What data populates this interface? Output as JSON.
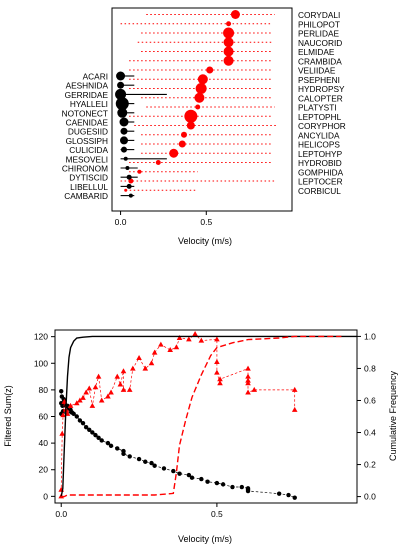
{
  "chart_data": [
    {
      "type": "scatter",
      "title": "",
      "xlabel": "Velocity (m/s)",
      "ylabel": "",
      "xlim": [
        -0.05,
        1.0
      ],
      "xticks": [
        0.0,
        0.5
      ],
      "xtick_labels": [
        "0.0",
        "0.5"
      ],
      "grid": false,
      "series": [
        {
          "name": "",
          "color": "#000000",
          "marker": "circle",
          "points": [
            {
              "label": "ACARI",
              "x": 0.0,
              "size": 4.5,
              "range": [
                0.0,
                0.08
              ]
            },
            {
              "label": "AESHNIDA",
              "x": 0.0,
              "size": 3.5,
              "range": [
                0.0,
                0.08
              ]
            },
            {
              "label": "GERRIDAE",
              "x": 0.0,
              "size": 5.5,
              "range": [
                0.0,
                0.27
              ]
            },
            {
              "label": "HYALLELI",
              "x": 0.01,
              "size": 6.5,
              "range": [
                0.0,
                0.08
              ]
            },
            {
              "label": "NOTONECT",
              "x": 0.01,
              "size": 5.0,
              "range": [
                0.0,
                0.08
              ]
            },
            {
              "label": "CAENIDAE",
              "x": 0.02,
              "size": 4.5,
              "range": [
                0.0,
                0.08
              ]
            },
            {
              "label": "DUGESIID",
              "x": 0.02,
              "size": 3.5,
              "range": [
                0.0,
                0.08
              ]
            },
            {
              "label": "GLOSSIPH",
              "x": 0.02,
              "size": 4.0,
              "range": [
                0.0,
                0.08
              ]
            },
            {
              "label": "CULICIDA",
              "x": 0.02,
              "size": 3.0,
              "range": [
                0.0,
                0.08
              ]
            },
            {
              "label": "MESOVELI",
              "x": 0.03,
              "size": 2.0,
              "range": [
                0.0,
                0.27
              ]
            },
            {
              "label": "CHIRONOM",
              "x": 0.04,
              "size": 2.0,
              "range": [
                0.0,
                0.1
              ]
            },
            {
              "label": "DYTISCID",
              "x": 0.05,
              "size": 2.5,
              "range": [
                0.0,
                0.1
              ]
            },
            {
              "label": "LIBELLUL",
              "x": 0.05,
              "size": 2.5,
              "range": [
                0.0,
                0.08
              ]
            },
            {
              "label": "CAMBARID",
              "x": 0.06,
              "size": 2.0,
              "range": [
                0.0,
                0.08
              ]
            }
          ]
        },
        {
          "name": "",
          "color": "#ff0000",
          "marker": "circle",
          "points": [
            {
              "label": "CORYDALI",
              "x": 0.67,
              "size": 4.5,
              "range": [
                0.15,
                0.9
              ]
            },
            {
              "label": "PHILOPOT",
              "x": 0.63,
              "size": 2.5,
              "range": [
                0.0,
                0.88
              ]
            },
            {
              "label": "PERLIDAE",
              "x": 0.63,
              "size": 5.5,
              "range": [
                0.12,
                0.88
              ]
            },
            {
              "label": "NAUCORID",
              "x": 0.63,
              "size": 5.0,
              "range": [
                0.1,
                0.88
              ]
            },
            {
              "label": "ELMIDAE",
              "x": 0.63,
              "size": 5.0,
              "range": [
                0.12,
                0.88
              ]
            },
            {
              "label": "CRAMBIDA",
              "x": 0.63,
              "size": 5.0,
              "range": [
                0.05,
                0.88
              ]
            },
            {
              "label": "VELIIDAE",
              "x": 0.52,
              "size": 3.5,
              "range": [
                0.05,
                0.88
              ]
            },
            {
              "label": "PSEPHENI",
              "x": 0.48,
              "size": 5.0,
              "range": [
                0.05,
                0.88
              ]
            },
            {
              "label": "HYDROPSY",
              "x": 0.47,
              "size": 5.5,
              "range": [
                0.05,
                0.88
              ]
            },
            {
              "label": "CALOPTER",
              "x": 0.46,
              "size": 5.0,
              "range": [
                0.12,
                0.88
              ]
            },
            {
              "label": "PLATYSTI",
              "x": 0.45,
              "size": 2.5,
              "range": [
                0.15,
                0.9
              ]
            },
            {
              "label": "LEPTOPHL",
              "x": 0.41,
              "size": 6.5,
              "range": [
                0.05,
                0.88
              ]
            },
            {
              "label": "CORYPHOR",
              "x": 0.41,
              "size": 4.0,
              "range": [
                0.08,
                0.92
              ]
            },
            {
              "label": "ANCYLIDA",
              "x": 0.37,
              "size": 3.0,
              "range": [
                0.12,
                0.88
              ]
            },
            {
              "label": "HELICOPS",
              "x": 0.36,
              "size": 3.5,
              "range": [
                0.12,
                0.88
              ]
            },
            {
              "label": "LEPTOHYP",
              "x": 0.31,
              "size": 4.5,
              "range": [
                0.12,
                0.88
              ]
            },
            {
              "label": "HYDROBID",
              "x": 0.22,
              "size": 2.5,
              "range": [
                0.05,
                0.88
              ]
            },
            {
              "label": "GOMPHIDA",
              "x": 0.11,
              "size": 2.0,
              "range": [
                0.05,
                0.45
              ]
            },
            {
              "label": "LEPTOCER",
              "x": 0.06,
              "size": 2.5,
              "range": [
                0.0,
                0.9
              ]
            },
            {
              "label": "CORBICUL",
              "x": 0.03,
              "size": 1.5,
              "range": [
                0.03,
                0.45
              ]
            }
          ]
        }
      ]
    },
    {
      "type": "line",
      "title": "",
      "xlabel": "Velocity (m/s)",
      "ylabel": "Filtered Sum(z)",
      "y2label": "Cumulative Frequency",
      "xlim": [
        -0.02,
        0.95
      ],
      "ylim": [
        -5,
        125
      ],
      "y2lim": [
        -0.04,
        1.04
      ],
      "xticks": [
        0.0,
        0.5
      ],
      "xtick_labels": [
        "0.0",
        "0.5"
      ],
      "yticks": [
        0,
        20,
        40,
        60,
        80,
        100,
        120
      ],
      "ytick_labels": [
        "0",
        "20",
        "40",
        "60",
        "80",
        "100",
        "120"
      ],
      "y2ticks": [
        0.0,
        0.2,
        0.4,
        0.6,
        0.8,
        1.0
      ],
      "y2tick_labels": [
        "0.0",
        "0.2",
        "0.4",
        "0.6",
        "0.8",
        "1.0"
      ],
      "grid": false,
      "series": [
        {
          "name": "",
          "axis": "left",
          "color": "#000000",
          "marker": "circle",
          "line": "dashed",
          "x": [
            0.0,
            0.0,
            0.0,
            0.002,
            0.004,
            0.006,
            0.008,
            0.01,
            0.01,
            0.012,
            0.015,
            0.02,
            0.025,
            0.03,
            0.035,
            0.04,
            0.05,
            0.06,
            0.07,
            0.08,
            0.09,
            0.1,
            0.11,
            0.12,
            0.13,
            0.15,
            0.16,
            0.18,
            0.2,
            0.2,
            0.22,
            0.25,
            0.27,
            0.29,
            0.3,
            0.33,
            0.36,
            0.38,
            0.41,
            0.42,
            0.45,
            0.47,
            0.5,
            0.52,
            0.55,
            0.58,
            0.6,
            0.6,
            0.6,
            0.7,
            0.73,
            0.75
          ],
          "values": [
            79,
            70,
            62,
            75,
            68,
            64,
            73,
            72,
            70,
            69,
            68,
            68,
            66,
            65,
            63,
            62,
            60,
            57,
            55,
            52,
            50,
            48,
            46,
            44,
            42,
            40,
            38,
            36,
            34,
            32,
            30,
            28,
            26,
            25,
            23,
            21,
            19,
            17,
            16,
            14,
            13,
            11,
            10,
            9,
            7,
            7,
            6,
            5,
            4,
            2,
            1,
            -1
          ]
        },
        {
          "name": "",
          "axis": "left",
          "color": "#ff0000",
          "marker": "triangle",
          "line": "dashed",
          "x": [
            0.0,
            0.0,
            0.003,
            0.006,
            0.01,
            0.015,
            0.02,
            0.03,
            0.05,
            0.06,
            0.07,
            0.08,
            0.09,
            0.1,
            0.11,
            0.12,
            0.13,
            0.15,
            0.16,
            0.18,
            0.19,
            0.2,
            0.2,
            0.22,
            0.23,
            0.25,
            0.27,
            0.29,
            0.3,
            0.32,
            0.35,
            0.37,
            0.38,
            0.41,
            0.43,
            0.45,
            0.5,
            0.5,
            0.5,
            0.51,
            0.51,
            0.6,
            0.6,
            0.6,
            0.6,
            0.6,
            0.62,
            0.75,
            0.75
          ],
          "values": [
            0,
            5,
            47,
            61,
            71,
            65,
            62,
            68,
            70,
            72,
            74,
            78,
            81,
            68,
            82,
            90,
            72,
            75,
            78,
            90,
            84,
            94,
            80,
            80,
            96,
            104,
            96,
            100,
            108,
            114,
            110,
            112,
            119,
            118,
            122,
            117,
            118,
            101,
            93,
            85,
            88,
            96,
            90,
            87,
            85,
            78,
            80,
            80,
            65
          ]
        },
        {
          "name": "",
          "axis": "right",
          "color": "#000000",
          "line": "solid",
          "x": [
            0.0,
            0.005,
            0.01,
            0.015,
            0.02,
            0.025,
            0.03,
            0.04,
            0.05,
            0.07,
            0.1,
            0.15,
            0.2,
            0.3,
            0.5,
            0.7,
            0.9,
            0.95
          ],
          "values": [
            0.0,
            0.05,
            0.3,
            0.55,
            0.75,
            0.87,
            0.93,
            0.97,
            0.99,
            0.995,
            1.0,
            1.0,
            1.0,
            1.0,
            1.0,
            1.0,
            1.0,
            1.0
          ]
        },
        {
          "name": "",
          "axis": "right",
          "color": "#ff0000",
          "line": "dashed",
          "x": [
            0.0,
            0.01,
            0.02,
            0.05,
            0.1,
            0.2,
            0.3,
            0.36,
            0.37,
            0.38,
            0.4,
            0.42,
            0.45,
            0.48,
            0.5,
            0.55,
            0.6,
            0.7,
            0.75,
            0.8,
            0.9
          ],
          "values": [
            0.0,
            0.0,
            0.01,
            0.01,
            0.01,
            0.01,
            0.01,
            0.02,
            0.15,
            0.32,
            0.48,
            0.62,
            0.76,
            0.88,
            0.93,
            0.96,
            0.98,
            0.99,
            1.0,
            1.0,
            1.0
          ]
        }
      ]
    }
  ]
}
